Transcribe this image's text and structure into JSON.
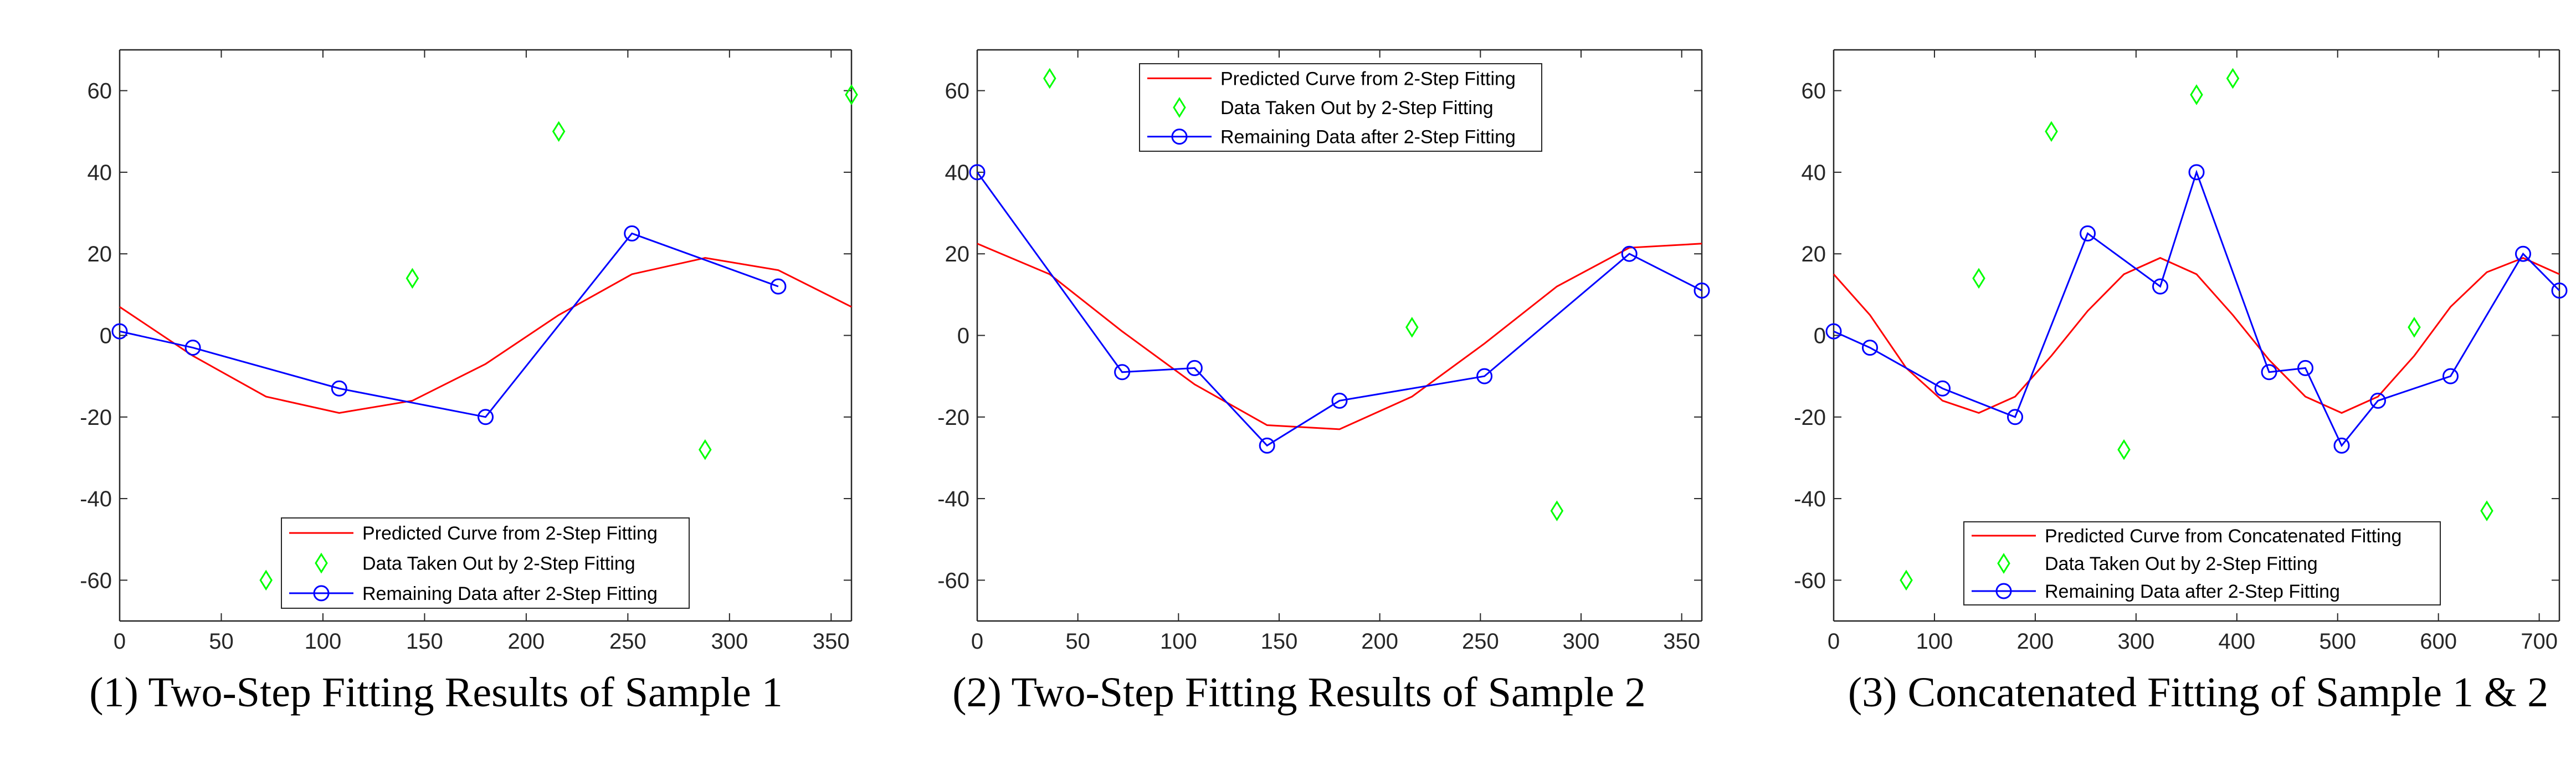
{
  "colors": {
    "predicted": "#ff0000",
    "taken_out": "#00ff00",
    "remaining": "#0000ff",
    "axis": "#262626"
  },
  "chart_data": [
    {
      "type": "line",
      "caption": "(1) Two-Step Fitting Results of Sample 1",
      "xlim": [
        0,
        360
      ],
      "ylim": [
        -70,
        70
      ],
      "xticks": [
        0,
        50,
        100,
        150,
        200,
        250,
        300,
        350
      ],
      "yticks": [
        -60,
        -40,
        -20,
        0,
        20,
        40,
        60
      ],
      "xtick_labels": [
        "0",
        "50",
        "100",
        "150",
        "200",
        "250",
        "300",
        "350"
      ],
      "ytick_labels": [
        "-60",
        "-40",
        "-20",
        "0",
        "20",
        "40",
        "60"
      ],
      "legend_position": "bottom-right",
      "series": [
        {
          "name": "Predicted Curve from 2-Step Fitting",
          "style": "line",
          "color": "#ff0000",
          "x": [
            0,
            36,
            72,
            108,
            144,
            180,
            216,
            252,
            288,
            324,
            360
          ],
          "y": [
            7,
            -5,
            -15,
            -19,
            -16,
            -7,
            5,
            15,
            19,
            16,
            7
          ]
        },
        {
          "name": "Data Taken Out by 2-Step Fitting",
          "style": "diamond",
          "color": "#00ff00",
          "x": [
            72,
            144,
            216,
            288,
            360
          ],
          "y": [
            -60,
            14,
            50,
            -28,
            59
          ]
        },
        {
          "name": "Remaining Data after 2-Step Fitting",
          "style": "line-circle",
          "color": "#0000ff",
          "x": [
            0,
            36,
            108,
            180,
            252,
            324
          ],
          "y": [
            1,
            -3,
            -13,
            -20,
            25,
            12
          ]
        }
      ]
    },
    {
      "type": "line",
      "caption": "(2) Two-Step Fitting Results of Sample 2",
      "xlim": [
        0,
        360
      ],
      "ylim": [
        -70,
        70
      ],
      "xticks": [
        0,
        50,
        100,
        150,
        200,
        250,
        300,
        350
      ],
      "yticks": [
        -60,
        -40,
        -20,
        0,
        20,
        40,
        60
      ],
      "xtick_labels": [
        "0",
        "50",
        "100",
        "150",
        "200",
        "250",
        "300",
        "350"
      ],
      "ytick_labels": [
        "-60",
        "-40",
        "-20",
        "0",
        "20",
        "40",
        "60"
      ],
      "legend_position": "top-center",
      "series": [
        {
          "name": "Predicted Curve from 2-Step Fitting",
          "style": "line",
          "color": "#ff0000",
          "x": [
            0,
            36,
            72,
            108,
            144,
            180,
            216,
            252,
            288,
            324,
            360
          ],
          "y": [
            22.5,
            15,
            1,
            -12,
            -22,
            -23,
            -15,
            -2,
            12,
            21.5,
            22.5
          ]
        },
        {
          "name": "Data Taken Out by 2-Step Fitting",
          "style": "diamond",
          "color": "#00ff00",
          "x": [
            36,
            216,
            288
          ],
          "y": [
            63,
            2,
            -43
          ]
        },
        {
          "name": "Remaining Data after 2-Step Fitting",
          "style": "line-circle",
          "color": "#0000ff",
          "x": [
            0,
            72,
            108,
            144,
            180,
            252,
            324,
            360
          ],
          "y": [
            40,
            -9,
            -8,
            -27,
            -16,
            -10,
            20,
            11
          ]
        }
      ]
    },
    {
      "type": "line",
      "caption": "(3) Concatenated Fitting of Sample 1 & 2",
      "xlim": [
        0,
        720
      ],
      "ylim": [
        -70,
        70
      ],
      "xticks": [
        0,
        100,
        200,
        300,
        400,
        500,
        600,
        700
      ],
      "yticks": [
        -60,
        -40,
        -20,
        0,
        20,
        40,
        60
      ],
      "xtick_labels": [
        "0",
        "100",
        "200",
        "300",
        "400",
        "500",
        "600",
        "700"
      ],
      "ytick_labels": [
        "-60",
        "-40",
        "-20",
        "0",
        "20",
        "40",
        "60"
      ],
      "legend_position": "bottom-center",
      "series": [
        {
          "name": "Predicted Curve from Concatenated Fitting",
          "style": "line",
          "color": "#ff0000",
          "x": [
            0,
            36,
            72,
            108,
            144,
            180,
            216,
            252,
            288,
            324,
            360,
            396,
            432,
            468,
            504,
            540,
            576,
            612,
            648,
            684,
            720
          ],
          "y": [
            15,
            5,
            -8,
            -16,
            -19,
            -15,
            -5,
            6,
            15,
            19,
            15,
            5,
            -6,
            -15,
            -19,
            -15,
            -5,
            7,
            15.5,
            19,
            15
          ]
        },
        {
          "name": "Data Taken Out by 2-Step Fitting",
          "style": "diamond",
          "color": "#00ff00",
          "x": [
            72,
            144,
            216,
            288,
            360,
            396,
            576,
            648
          ],
          "y": [
            -60,
            14,
            50,
            -28,
            59,
            63,
            2,
            -43
          ]
        },
        {
          "name": "Remaining Data after 2-Step Fitting",
          "style": "line-circle",
          "color": "#0000ff",
          "x": [
            0,
            36,
            108,
            180,
            252,
            324,
            360,
            432,
            468,
            504,
            540,
            612,
            684,
            720
          ],
          "y": [
            1,
            -3,
            -13,
            -20,
            25,
            12,
            40,
            -9,
            -8,
            -27,
            -16,
            -10,
            20,
            11
          ]
        }
      ]
    }
  ]
}
